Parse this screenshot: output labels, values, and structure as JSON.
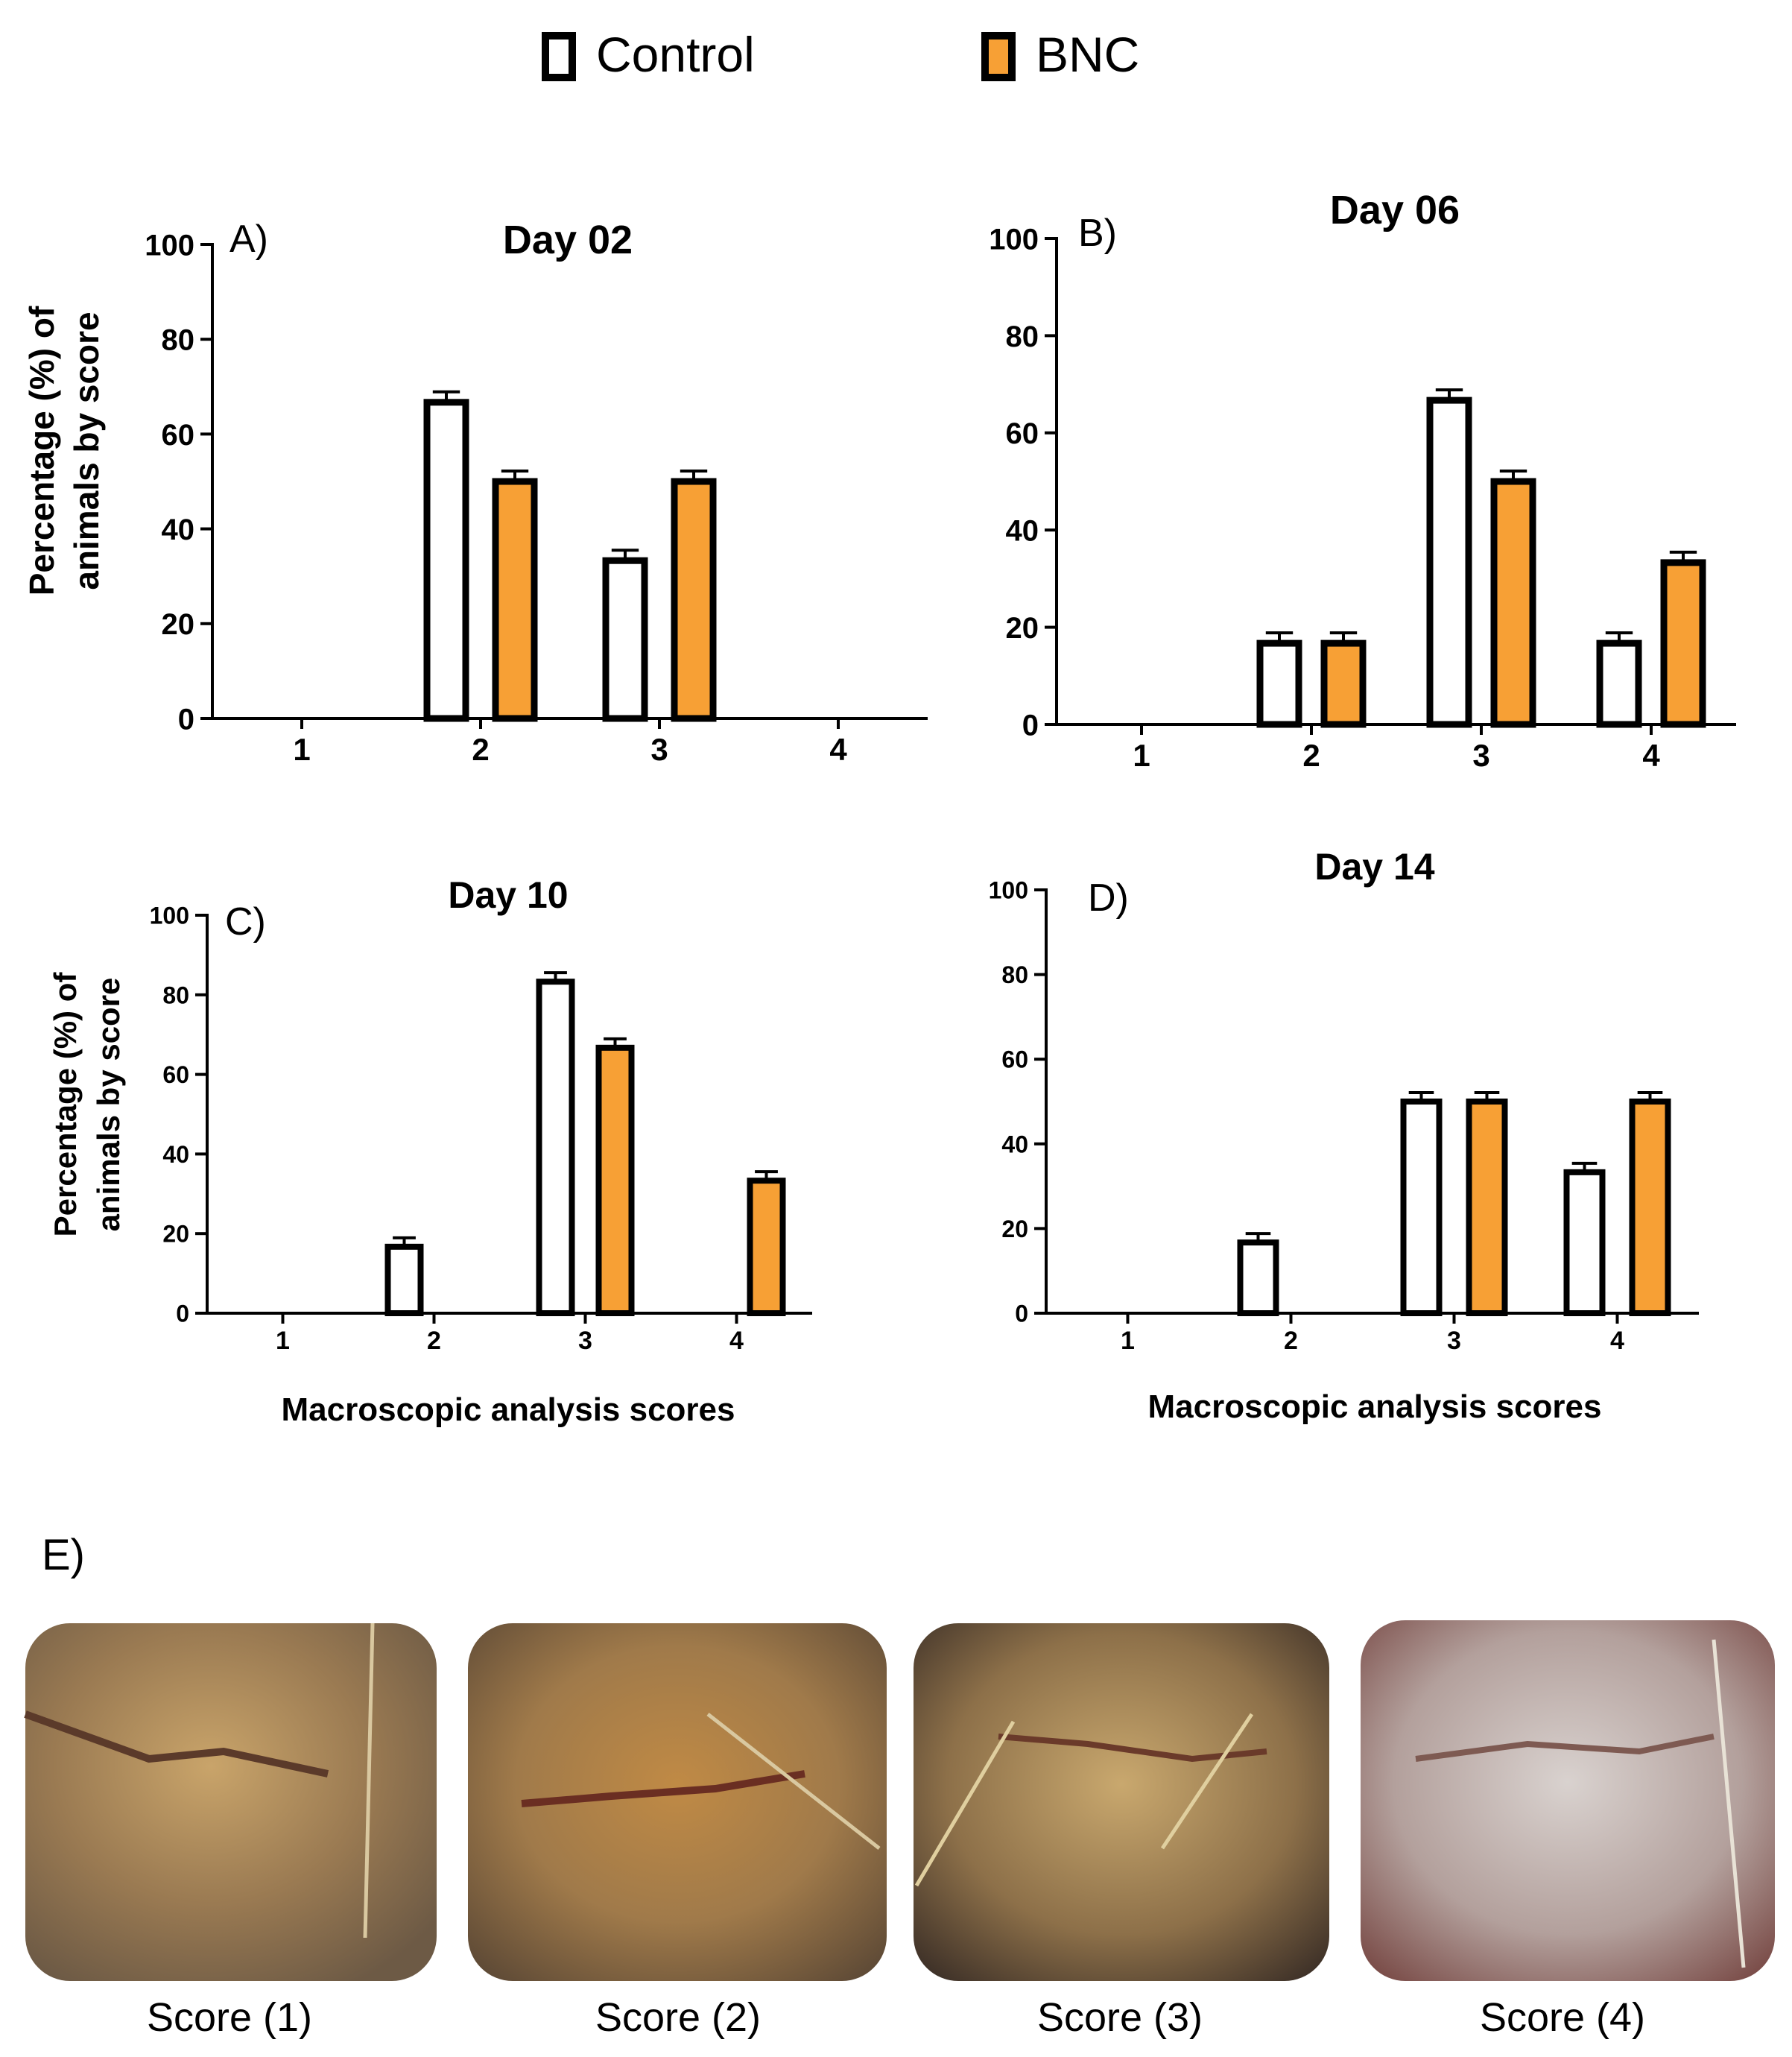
{
  "legend": {
    "items": [
      {
        "label": "Control",
        "color": "#ffffff"
      },
      {
        "label": "BNC",
        "color": "#f7a035"
      }
    ]
  },
  "colors": {
    "control": "#ffffff",
    "bnc": "#f7a035",
    "edge": "#000000"
  },
  "chart_data": [
    {
      "type": "bar",
      "letter": "A)",
      "title": "Day 02",
      "ylabel_line1": "Percentage (%) of",
      "ylabel_line2": "animals by score",
      "xlabel": "",
      "categories": [
        "1",
        "2",
        "3",
        "4"
      ],
      "yticks": [
        "0",
        "20",
        "40",
        "60",
        "80",
        "100"
      ],
      "ylim": [
        0,
        100
      ],
      "series": [
        {
          "name": "Control",
          "values": [
            0,
            66.7,
            33.3,
            0
          ]
        },
        {
          "name": "BNC",
          "values": [
            0,
            50,
            50,
            0
          ]
        }
      ]
    },
    {
      "type": "bar",
      "letter": "B)",
      "title": "Day 06",
      "ylabel_line1": "",
      "ylabel_line2": "",
      "xlabel": "",
      "categories": [
        "1",
        "2",
        "3",
        "4"
      ],
      "yticks": [
        "0",
        "20",
        "40",
        "60",
        "80",
        "100"
      ],
      "ylim": [
        0,
        100
      ],
      "series": [
        {
          "name": "Control",
          "values": [
            0,
            16.7,
            66.7,
            16.7
          ]
        },
        {
          "name": "BNC",
          "values": [
            0,
            16.7,
            50,
            33.3
          ]
        }
      ]
    },
    {
      "type": "bar",
      "letter": "C)",
      "title": "Day 10",
      "ylabel_line1": "Percentage (%) of",
      "ylabel_line2": "animals by score",
      "xlabel": "Macroscopic analysis scores",
      "categories": [
        "1",
        "2",
        "3",
        "4"
      ],
      "yticks": [
        "0",
        "20",
        "40",
        "60",
        "80",
        "100"
      ],
      "ylim": [
        0,
        100
      ],
      "series": [
        {
          "name": "Control",
          "values": [
            0,
            16.7,
            83.3,
            0
          ]
        },
        {
          "name": "BNC",
          "values": [
            0,
            0,
            66.7,
            33.3
          ]
        }
      ]
    },
    {
      "type": "bar",
      "letter": "D)",
      "title": "Day 14",
      "ylabel_line1": "",
      "ylabel_line2": "",
      "xlabel": "Macroscopic analysis scores",
      "categories": [
        "1",
        "2",
        "3",
        "4"
      ],
      "yticks": [
        "0",
        "20",
        "40",
        "60",
        "80",
        "100"
      ],
      "ylim": [
        0,
        100
      ],
      "series": [
        {
          "name": "Control",
          "values": [
            0,
            16.7,
            50,
            33.3
          ]
        },
        {
          "name": "BNC",
          "values": [
            0,
            0,
            50,
            50
          ]
        }
      ]
    }
  ],
  "photos": {
    "letter": "E)",
    "items": [
      {
        "caption": "Score (1)",
        "tone": "#a8875a"
      },
      {
        "caption": "Score (2)",
        "tone": "#a7844f"
      },
      {
        "caption": "Score (3)",
        "tone": "#9c7c48"
      },
      {
        "caption": "Score (4)",
        "tone": "#b9aaa6"
      }
    ]
  }
}
